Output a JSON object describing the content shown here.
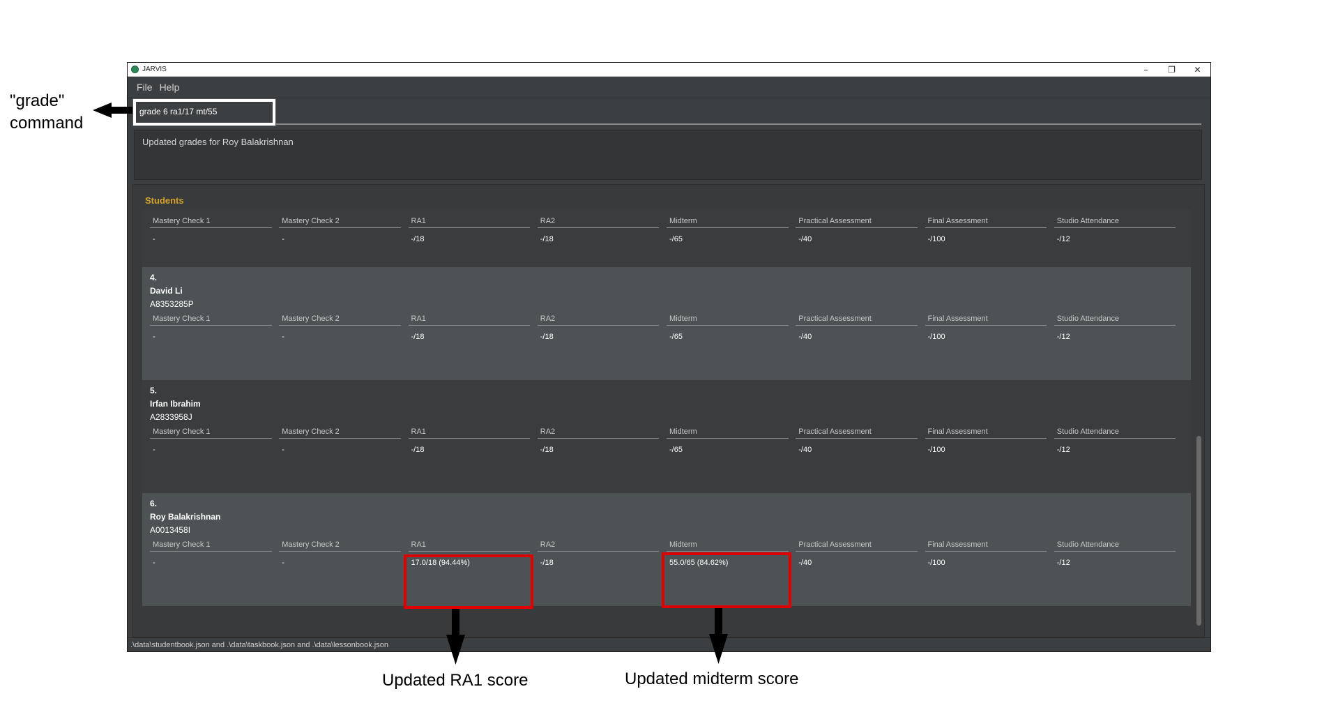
{
  "window": {
    "title": "JARVIS",
    "controls": {
      "minimize": "–",
      "maximize": "❐",
      "close": "✕"
    }
  },
  "menu": [
    "File",
    "Help"
  ],
  "command_input": {
    "value": "grade 6 ra1/17 mt/55"
  },
  "result_message": "Updated grades for Roy Balakrishnan",
  "students_panel": {
    "title": "Students",
    "grade_headers": [
      "Mastery Check 1",
      "Mastery Check 2",
      "RA1",
      "RA2",
      "Midterm",
      "Practical Assessment",
      "Final Assessment",
      "Studio Attendance"
    ],
    "partial_card_values": [
      "-",
      "-",
      "-/18",
      "-/18",
      "-/65",
      "-/40",
      "-/100",
      "-/12"
    ],
    "students": [
      {
        "index": "4.",
        "name": "David Li",
        "id": "A8353285P",
        "values": [
          "-",
          "-",
          "-/18",
          "-/18",
          "-/65",
          "-/40",
          "-/100",
          "-/12"
        ]
      },
      {
        "index": "5.",
        "name": "Irfan Ibrahim",
        "id": "A2833958J",
        "values": [
          "-",
          "-",
          "-/18",
          "-/18",
          "-/65",
          "-/40",
          "-/100",
          "-/12"
        ]
      },
      {
        "index": "6.",
        "name": "Roy Balakrishnan",
        "id": "A0013458I",
        "values": [
          "-",
          "-",
          "17.0/18 (94.44%)",
          "-/18",
          "55.0/65 (84.62%)",
          "-/40",
          "-/100",
          "-/12"
        ]
      }
    ]
  },
  "status_bar": ".\\data\\studentbook.json and .\\data\\taskbook.json and .\\data\\lessonbook.json",
  "annotations": {
    "grade_command": [
      "\"grade\"",
      "command"
    ],
    "ra1": "Updated RA1 score",
    "midterm": "Updated midterm score"
  },
  "colors": {
    "window_bg": "#3c3f41",
    "card_light": "#4d5254",
    "card_dark": "#3a3c3e",
    "section_title": "#d4a22a",
    "highlight_red": "#e00000"
  }
}
